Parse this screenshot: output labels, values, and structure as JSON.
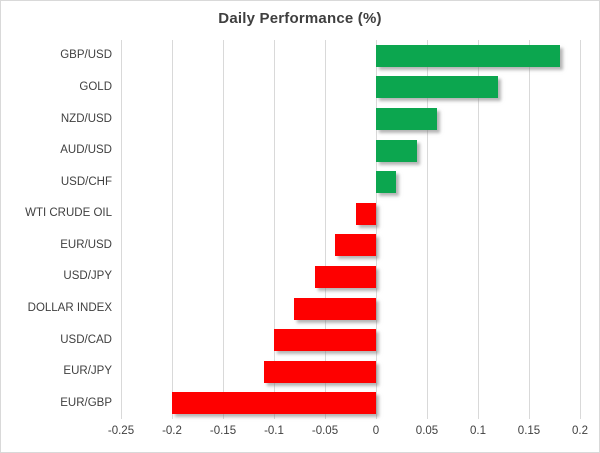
{
  "chart_data": {
    "type": "bar",
    "orientation": "horizontal",
    "title": "Daily Performance (%)",
    "categories": [
      "GBP/USD",
      "GOLD",
      "NZD/USD",
      "AUD/USD",
      "USD/CHF",
      "WTI CRUDE OIL",
      "EUR/USD",
      "USD/JPY",
      "DOLLAR INDEX",
      "USD/CAD",
      "EUR/JPY",
      "EUR/GBP"
    ],
    "values": [
      0.18,
      0.12,
      0.06,
      0.04,
      0.02,
      -0.02,
      -0.04,
      -0.06,
      -0.08,
      -0.1,
      -0.11,
      -0.2
    ],
    "xlabel": "",
    "ylabel": "",
    "xlim": [
      -0.25,
      0.2
    ],
    "x_ticks": [
      {
        "value": -0.25,
        "label": "-0.25"
      },
      {
        "value": -0.2,
        "label": "-0.2"
      },
      {
        "value": -0.15,
        "label": "-0.15"
      },
      {
        "value": -0.1,
        "label": "-0.1"
      },
      {
        "value": -0.05,
        "label": "-0.05"
      },
      {
        "value": 0,
        "label": "0"
      },
      {
        "value": 0.05,
        "label": "0.05"
      },
      {
        "value": 0.1,
        "label": "0.1"
      },
      {
        "value": 0.15,
        "label": "0.15"
      },
      {
        "value": 0.2,
        "label": "0.2"
      }
    ],
    "grid": "vertical-only",
    "legend": "none",
    "colors": {
      "positive": "#0ca64f",
      "negative": "#fe0000",
      "gridline": "#d9d9d9",
      "text": "#404040",
      "title_text": "#3f3f3f",
      "background": "#ffffff",
      "border": "#d9d9d9"
    }
  }
}
